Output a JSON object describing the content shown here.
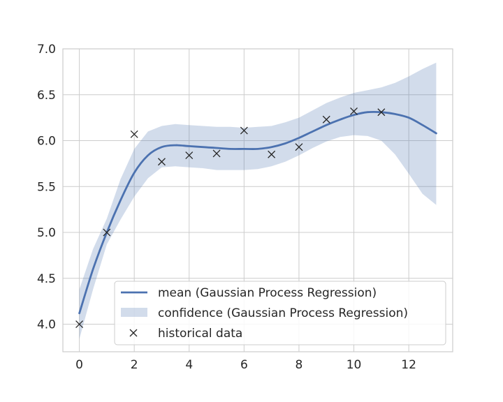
{
  "chart_data": {
    "type": "line",
    "title": "",
    "xlabel": "",
    "ylabel": "",
    "xlim": [
      -0.6,
      13.6
    ],
    "ylim": [
      3.7,
      7.0
    ],
    "xticks": [
      0,
      2,
      4,
      6,
      8,
      10,
      12
    ],
    "yticks": [
      4.0,
      4.5,
      5.0,
      5.5,
      6.0,
      6.5,
      7.0
    ],
    "xtick_labels": [
      "0",
      "2",
      "4",
      "6",
      "8",
      "10",
      "12"
    ],
    "ytick_labels": [
      "4.0",
      "4.5",
      "5.0",
      "5.5",
      "6.0",
      "6.5",
      "7.0"
    ],
    "grid": true,
    "legend_position": "lower-right",
    "series": [
      {
        "name": "mean (Gaussian Process Regression)",
        "kind": "line",
        "color": "#4c72b0",
        "x": [
          0,
          0.5,
          1,
          1.5,
          2,
          2.5,
          3,
          3.5,
          4,
          4.5,
          5,
          5.5,
          6,
          6.5,
          7,
          7.5,
          8,
          8.5,
          9,
          9.5,
          10,
          10.5,
          11,
          11.5,
          12,
          12.5,
          13
        ],
        "y": [
          4.12,
          4.6,
          5.0,
          5.35,
          5.65,
          5.84,
          5.93,
          5.95,
          5.94,
          5.93,
          5.92,
          5.91,
          5.91,
          5.91,
          5.93,
          5.97,
          6.03,
          6.1,
          6.17,
          6.23,
          6.28,
          6.31,
          6.31,
          6.29,
          6.25,
          6.17,
          6.08
        ]
      },
      {
        "name": "confidence (Gaussian Process Regression)",
        "kind": "band",
        "color": "#4c72b0",
        "x": [
          0,
          0.5,
          1,
          1.5,
          2,
          2.5,
          3,
          3.5,
          4,
          4.5,
          5,
          5.5,
          6,
          6.5,
          7,
          7.5,
          8,
          8.5,
          9,
          9.5,
          10,
          10.5,
          11,
          11.5,
          12,
          12.5,
          13
        ],
        "lower": [
          3.84,
          4.38,
          4.87,
          5.14,
          5.39,
          5.59,
          5.71,
          5.72,
          5.71,
          5.7,
          5.68,
          5.68,
          5.68,
          5.69,
          5.72,
          5.77,
          5.84,
          5.92,
          5.99,
          6.04,
          6.06,
          6.05,
          6.0,
          5.85,
          5.64,
          5.42,
          5.3
        ],
        "upper": [
          4.38,
          4.82,
          5.15,
          5.58,
          5.91,
          6.1,
          6.16,
          6.18,
          6.17,
          6.16,
          6.15,
          6.15,
          6.14,
          6.15,
          6.16,
          6.2,
          6.25,
          6.33,
          6.41,
          6.47,
          6.52,
          6.55,
          6.58,
          6.63,
          6.7,
          6.78,
          6.85
        ]
      },
      {
        "name": "historical data",
        "kind": "scatter",
        "marker": "x",
        "color": "#262626",
        "x": [
          0,
          1,
          2,
          3,
          4,
          5,
          6,
          7,
          8,
          9,
          10,
          11
        ],
        "y": [
          4.0,
          5.0,
          6.07,
          5.77,
          5.84,
          5.86,
          6.11,
          5.85,
          5.93,
          6.23,
          6.32,
          6.31
        ]
      }
    ]
  }
}
